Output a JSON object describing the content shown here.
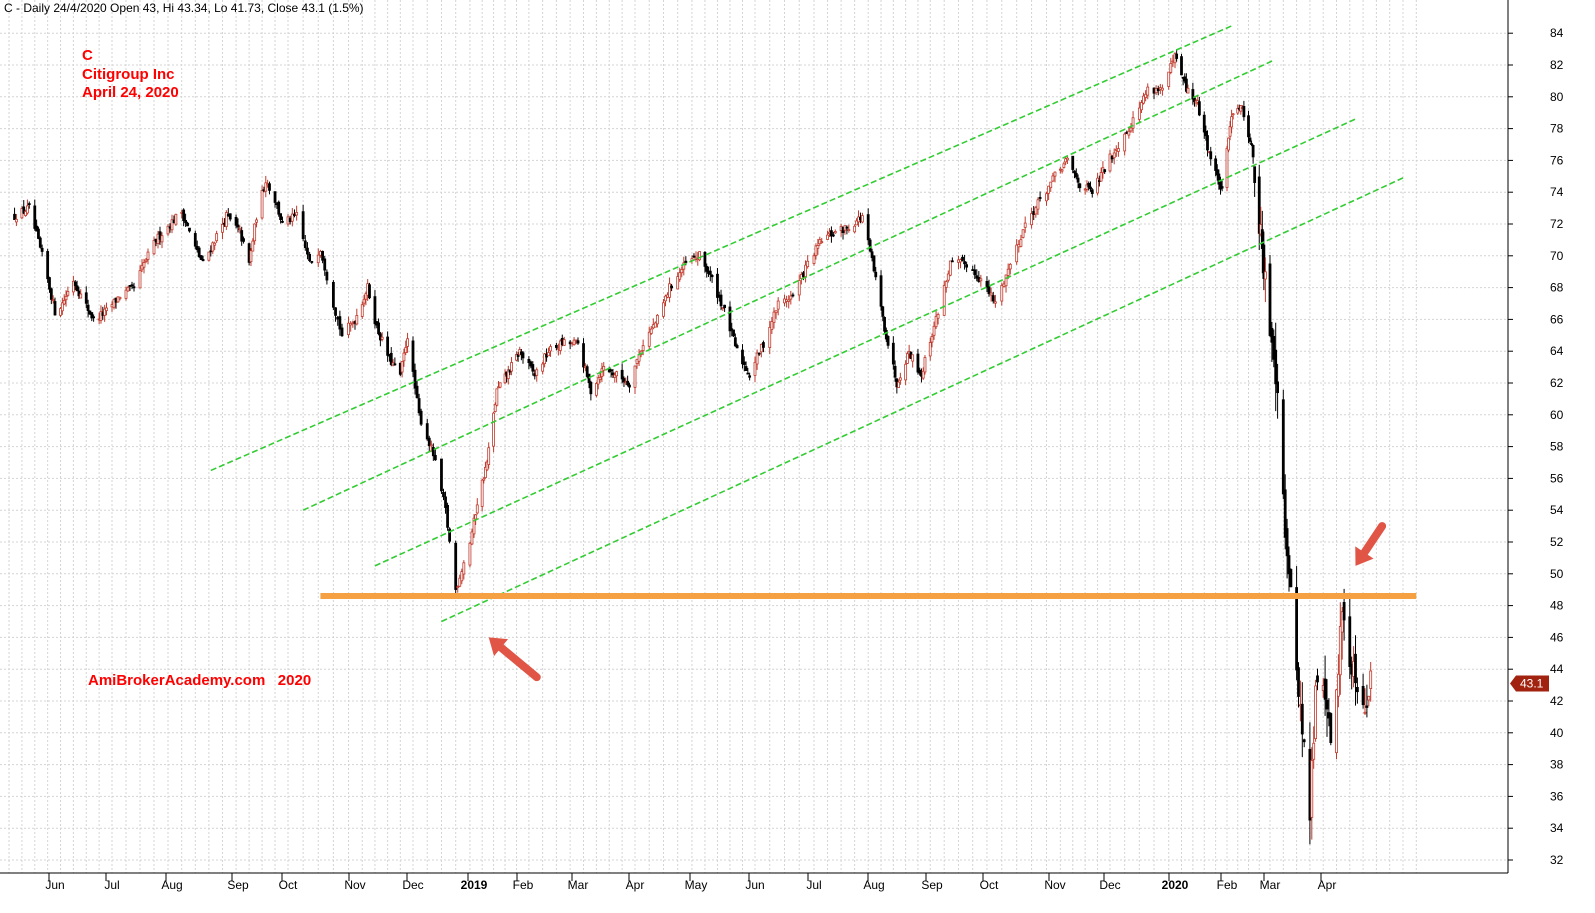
{
  "header": {
    "info_line": "C - Daily 24/4/2020 Open 43, Hi 43.34, Lo 41.73, Close 43.1 (1.5%)"
  },
  "annotations": {
    "ticker": "C",
    "company": "Citigroup Inc",
    "date": "April 24, 2020",
    "watermark": "AmiBrokerAcademy.com   2020",
    "last_price_label": "43.1"
  },
  "colors": {
    "up_candle": "#c0392b",
    "down_candle": "#000000",
    "channel_lines": "#33cc33",
    "support_line": "#f4a043",
    "arrows": "#e05545",
    "annotation_text": "#ff0000",
    "price_tag": "#a1220f",
    "grid": "#d4d4d4"
  },
  "chart_data": {
    "type": "candlestick",
    "title": "C - Daily 24/4/2020",
    "y_range": [
      31,
      85.5
    ],
    "y_ticks": [
      32,
      34,
      36,
      38,
      40,
      42,
      44,
      46,
      48,
      50,
      52,
      54,
      56,
      58,
      60,
      62,
      64,
      66,
      68,
      70,
      72,
      74,
      76,
      78,
      80,
      82,
      84
    ],
    "x_labels": [
      {
        "label": "Jun",
        "date": "2018-06-01",
        "bold": false
      },
      {
        "label": "Jul",
        "date": "2018-07-02",
        "bold": false
      },
      {
        "label": "Aug",
        "date": "2018-08-01",
        "bold": false
      },
      {
        "label": "Sep",
        "date": "2018-09-04",
        "bold": false
      },
      {
        "label": "Oct",
        "date": "2018-10-01",
        "bold": false
      },
      {
        "label": "Nov",
        "date": "2018-11-01",
        "bold": false
      },
      {
        "label": "Dec",
        "date": "2018-12-03",
        "bold": false
      },
      {
        "label": "2019",
        "date": "2019-01-02",
        "bold": true
      },
      {
        "label": "Feb",
        "date": "2019-02-01",
        "bold": false
      },
      {
        "label": "Mar",
        "date": "2019-03-01",
        "bold": false
      },
      {
        "label": "Apr",
        "date": "2019-04-01",
        "bold": false
      },
      {
        "label": "May",
        "date": "2019-05-01",
        "bold": false
      },
      {
        "label": "Jun",
        "date": "2019-06-03",
        "bold": false
      },
      {
        "label": "Jul",
        "date": "2019-07-01",
        "bold": false
      },
      {
        "label": "Aug",
        "date": "2019-08-01",
        "bold": false
      },
      {
        "label": "Sep",
        "date": "2019-09-03",
        "bold": false
      },
      {
        "label": "Oct",
        "date": "2019-10-01",
        "bold": false
      },
      {
        "label": "Nov",
        "date": "2019-11-01",
        "bold": false
      },
      {
        "label": "Dec",
        "date": "2019-12-02",
        "bold": false
      },
      {
        "label": "2020",
        "date": "2020-01-02",
        "bold": true
      },
      {
        "label": "Feb",
        "date": "2020-02-03",
        "bold": false
      },
      {
        "label": "Mar",
        "date": "2020-03-02",
        "bold": false
      },
      {
        "label": "Apr",
        "date": "2020-04-01",
        "bold": false
      }
    ],
    "price_path": [
      [
        "2018-05-10",
        72.5
      ],
      [
        "2018-05-18",
        73.0
      ],
      [
        "2018-05-25",
        70.0
      ],
      [
        "2018-06-01",
        66.5
      ],
      [
        "2018-06-05",
        67.0
      ],
      [
        "2018-06-11",
        68.5
      ],
      [
        "2018-06-15",
        67.5
      ],
      [
        "2018-06-22",
        66.0
      ],
      [
        "2018-06-29",
        66.5
      ],
      [
        "2018-07-06",
        67.5
      ],
      [
        "2018-07-13",
        68.0
      ],
      [
        "2018-07-18",
        69.5
      ],
      [
        "2018-07-24",
        71.0
      ],
      [
        "2018-07-31",
        72.0
      ],
      [
        "2018-08-06",
        72.8
      ],
      [
        "2018-08-13",
        70.5
      ],
      [
        "2018-08-17",
        69.5
      ],
      [
        "2018-08-23",
        71.0
      ],
      [
        "2018-08-29",
        72.5
      ],
      [
        "2018-09-05",
        71.5
      ],
      [
        "2018-09-10",
        69.5
      ],
      [
        "2018-09-14",
        72.5
      ],
      [
        "2018-09-19",
        74.8
      ],
      [
        "2018-09-24",
        73.5
      ],
      [
        "2018-09-28",
        72.0
      ],
      [
        "2018-10-05",
        72.5
      ],
      [
        "2018-10-11",
        69.5
      ],
      [
        "2018-10-16",
        70.5
      ],
      [
        "2018-10-22",
        67.0
      ],
      [
        "2018-10-26",
        65.0
      ],
      [
        "2018-11-01",
        66.0
      ],
      [
        "2018-11-08",
        68.0
      ],
      [
        "2018-11-13",
        65.5
      ],
      [
        "2018-11-20",
        63.5
      ],
      [
        "2018-11-26",
        62.5
      ],
      [
        "2018-11-30",
        65.0
      ],
      [
        "2018-12-06",
        60.0
      ],
      [
        "2018-12-13",
        57.5
      ],
      [
        "2018-12-19",
        54.0
      ],
      [
        "2018-12-24",
        49.0
      ],
      [
        "2018-12-31",
        52.0
      ],
      [
        "2019-01-04",
        54.5
      ],
      [
        "2019-01-10",
        57.0
      ],
      [
        "2019-01-16",
        61.5
      ],
      [
        "2019-01-22",
        62.5
      ],
      [
        "2019-01-30",
        64.0
      ],
      [
        "2019-02-07",
        62.5
      ],
      [
        "2019-02-14",
        64.0
      ],
      [
        "2019-02-21",
        64.5
      ],
      [
        "2019-03-01",
        64.5
      ],
      [
        "2019-03-08",
        61.5
      ],
      [
        "2019-03-15",
        63.0
      ],
      [
        "2019-03-22",
        62.5
      ],
      [
        "2019-03-29",
        62.0
      ],
      [
        "2019-04-05",
        64.5
      ],
      [
        "2019-04-12",
        66.0
      ],
      [
        "2019-04-18",
        68.0
      ],
      [
        "2019-04-26",
        69.5
      ],
      [
        "2019-05-03",
        70.0
      ],
      [
        "2019-05-10",
        68.5
      ],
      [
        "2019-05-17",
        66.5
      ],
      [
        "2019-05-24",
        64.0
      ],
      [
        "2019-05-31",
        62.5
      ],
      [
        "2019-06-07",
        64.5
      ],
      [
        "2019-06-14",
        67.0
      ],
      [
        "2019-06-21",
        67.5
      ],
      [
        "2019-06-28",
        69.5
      ],
      [
        "2019-07-05",
        71.0
      ],
      [
        "2019-07-12",
        71.5
      ],
      [
        "2019-07-19",
        71.8
      ],
      [
        "2019-07-26",
        72.5
      ],
      [
        "2019-08-02",
        68.5
      ],
      [
        "2019-08-07",
        65.5
      ],
      [
        "2019-08-14",
        62.0
      ],
      [
        "2019-08-21",
        64.0
      ],
      [
        "2019-08-28",
        62.5
      ],
      [
        "2019-09-05",
        66.0
      ],
      [
        "2019-09-12",
        69.5
      ],
      [
        "2019-09-20",
        69.5
      ],
      [
        "2019-09-27",
        68.5
      ],
      [
        "2019-10-04",
        67.0
      ],
      [
        "2019-10-11",
        69.5
      ],
      [
        "2019-10-18",
        72.0
      ],
      [
        "2019-10-25",
        73.5
      ],
      [
        "2019-11-01",
        75.0
      ],
      [
        "2019-11-08",
        76.0
      ],
      [
        "2019-11-15",
        74.5
      ],
      [
        "2019-11-22",
        74.0
      ],
      [
        "2019-11-29",
        75.5
      ],
      [
        "2019-12-06",
        77.0
      ],
      [
        "2019-12-13",
        78.5
      ],
      [
        "2019-12-20",
        80.5
      ],
      [
        "2019-12-27",
        80.5
      ],
      [
        "2020-01-02",
        82.5
      ],
      [
        "2020-01-09",
        80.5
      ],
      [
        "2020-01-16",
        79.5
      ],
      [
        "2020-01-23",
        76.5
      ],
      [
        "2020-01-31",
        74.0
      ],
      [
        "2020-02-06",
        79.0
      ],
      [
        "2020-02-12",
        79.5
      ],
      [
        "2020-02-19",
        77.0
      ],
      [
        "2020-02-24",
        72.0
      ],
      [
        "2020-02-28",
        68.0
      ],
      [
        "2020-03-03",
        65.0
      ],
      [
        "2020-03-06",
        62.0
      ],
      [
        "2020-03-09",
        55.0
      ],
      [
        "2020-03-12",
        49.5
      ],
      [
        "2020-03-16",
        44.5
      ],
      [
        "2020-03-19",
        40.0
      ],
      [
        "2020-03-23",
        35.0
      ],
      [
        "2020-03-26",
        42.5
      ],
      [
        "2020-03-31",
        43.0
      ],
      [
        "2020-04-03",
        39.0
      ],
      [
        "2020-04-07",
        44.5
      ],
      [
        "2020-04-09",
        47.5
      ],
      [
        "2020-04-14",
        44.5
      ],
      [
        "2020-04-17",
        43.5
      ],
      [
        "2020-04-21",
        42.0
      ],
      [
        "2020-04-24",
        43.1
      ]
    ],
    "channel_lines": [
      {
        "start": [
          "2018-08-21",
          56.5
        ],
        "end": [
          "2020-02-07",
          84.5
        ]
      },
      {
        "start": [
          "2018-10-08",
          54.0
        ],
        "end": [
          "2020-03-04",
          82.3
        ]
      },
      {
        "start": [
          "2018-11-12",
          50.5
        ],
        "end": [
          "2020-04-16",
          78.6
        ]
      },
      {
        "start": [
          "2018-12-17",
          47.0
        ],
        "end": [
          "2020-05-11",
          74.9
        ]
      }
    ],
    "support_line": {
      "value": 48.6,
      "start": "2018-10-16",
      "end": "2020-05-18"
    },
    "arrows": [
      {
        "tip": [
          "2019-01-11",
          46.0
        ],
        "tail": [
          "2019-02-08",
          43.5
        ]
      },
      {
        "tip": [
          "2020-04-16",
          50.5
        ],
        "tail": [
          "2020-04-30",
          53.0
        ]
      }
    ],
    "last_price": 43.1,
    "grid": true
  }
}
